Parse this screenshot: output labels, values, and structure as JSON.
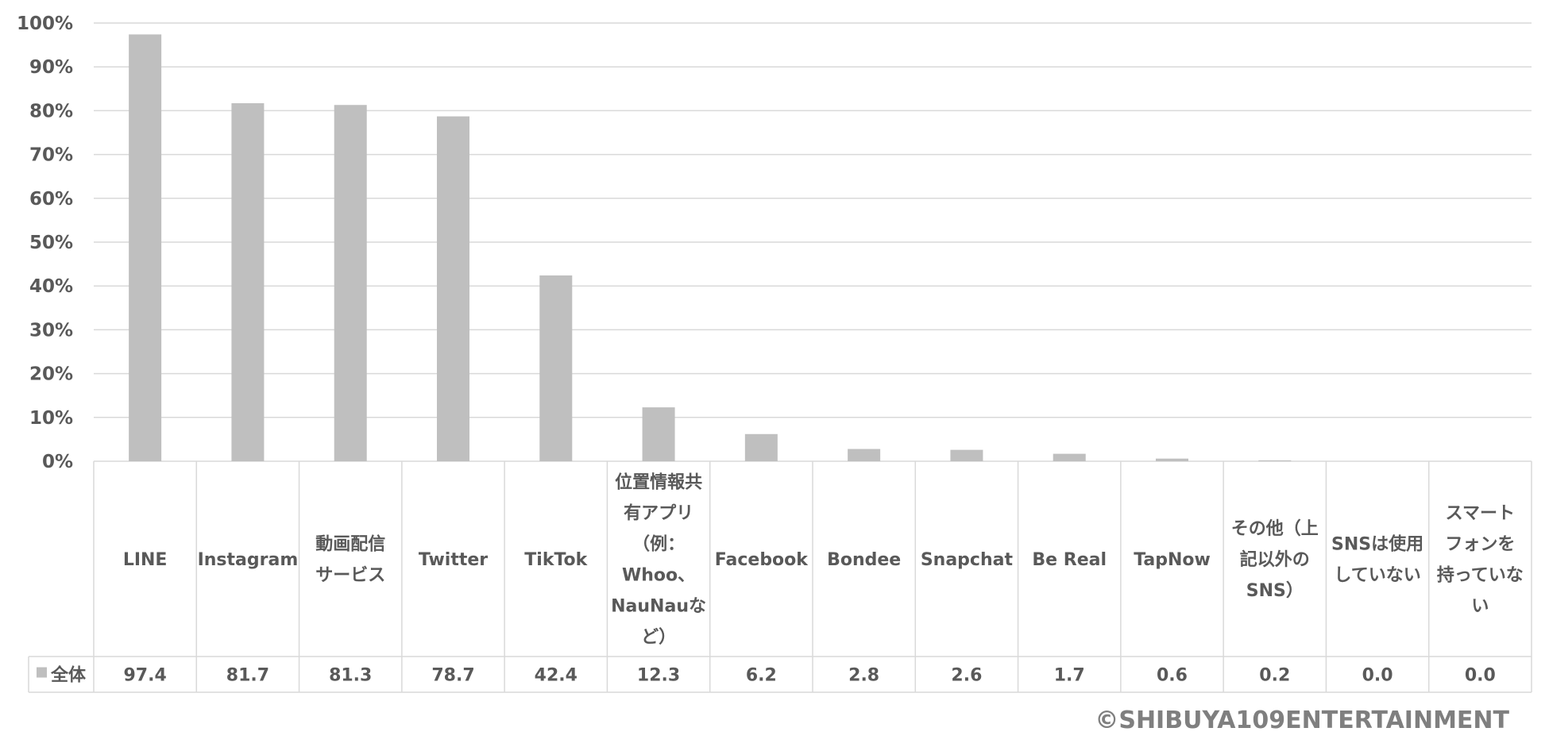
{
  "chart_data": {
    "type": "bar",
    "categories": [
      "LINE",
      "Instagram",
      "動画配信サービス",
      "Twitter",
      "TikTok",
      "位置情報共有アプリ（例：Whoo、NauNauなど）",
      "Facebook",
      "Bondee",
      "Snapchat",
      "Be Real",
      "TapNow",
      "その他（上記以外のSNS）",
      "SNSは使用していない",
      "スマートフォンを持っていない"
    ],
    "category_lines": [
      [
        "LINE"
      ],
      [
        "Instagram"
      ],
      [
        "動画配信",
        "サービス"
      ],
      [
        "Twitter"
      ],
      [
        "TikTok"
      ],
      [
        "位置情報共",
        "有アプリ",
        "（例：",
        "Whoo、",
        "NauNauな",
        "ど）"
      ],
      [
        "Facebook"
      ],
      [
        "Bondee"
      ],
      [
        "Snapchat"
      ],
      [
        "Be Real"
      ],
      [
        "TapNow"
      ],
      [
        "その他（上",
        "記以外の",
        "SNS）"
      ],
      [
        "SNSは使用",
        "していない"
      ],
      [
        "スマート",
        "フォンを",
        "持っていな",
        "い"
      ]
    ],
    "series": [
      {
        "name": "全体",
        "values": [
          97.4,
          81.7,
          81.3,
          78.7,
          42.4,
          12.3,
          6.2,
          2.8,
          2.6,
          1.7,
          0.6,
          0.2,
          0.0,
          0.0
        ],
        "labels": [
          "97.4",
          "81.7",
          "81.3",
          "78.7",
          "42.4",
          "12.3",
          "6.2",
          "2.8",
          "2.6",
          "1.7",
          "0.6",
          "0.2",
          "0.0",
          "0.0"
        ],
        "color": "#bfbfbf"
      }
    ],
    "yticks": [
      "0%",
      "10%",
      "20%",
      "30%",
      "40%",
      "50%",
      "60%",
      "70%",
      "80%",
      "90%",
      "100%"
    ],
    "ylim": [
      0,
      100
    ],
    "grid": true,
    "data_table": true,
    "colors": {
      "bar": "#bfbfbf",
      "grid": "#d9d9d9",
      "text": "#595959"
    }
  },
  "copyright": "©SHIBUYA109ENTERTAINMENT"
}
